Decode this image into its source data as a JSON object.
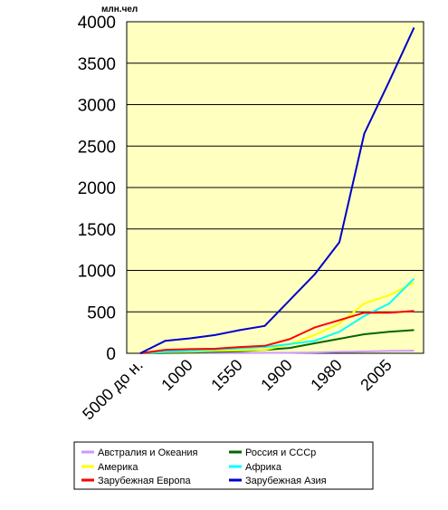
{
  "chart_data": {
    "type": "line",
    "ylabel": "млн.чел",
    "ylim": [
      0,
      4000
    ],
    "yticks": [
      0,
      500,
      1000,
      1500,
      2000,
      2500,
      3000,
      3500,
      4000
    ],
    "categories": [
      "5000 до н.",
      "",
      "1000",
      "",
      "1550",
      "",
      "1900",
      "",
      "1980",
      "",
      "2005",
      ""
    ],
    "grid": "horizontal",
    "legend_position": "bottom",
    "series": [
      {
        "name": "Австралия и Океания",
        "color": "#cc99ff",
        "values": [
          0,
          1,
          2,
          2,
          3,
          5,
          6,
          10,
          18,
          22,
          28,
          32
        ]
      },
      {
        "name": "Россия и СССр",
        "color": "#006600",
        "values": [
          0,
          5,
          10,
          17,
          25,
          40,
          65,
          120,
          175,
          230,
          260,
          280
        ]
      },
      {
        "name": "Америка",
        "color": "#ffff00",
        "values": [
          0,
          15,
          20,
          30,
          35,
          40,
          110,
          220,
          360,
          600,
          700,
          850
        ]
      },
      {
        "name": "Африка",
        "color": "#00ffff",
        "values": [
          0,
          20,
          30,
          45,
          60,
          75,
          110,
          150,
          260,
          450,
          600,
          900
        ]
      },
      {
        "name": "Зарубежная Европа",
        "color": "#ff0000",
        "values": [
          0,
          40,
          50,
          55,
          75,
          90,
          170,
          310,
          400,
          490,
          490,
          510
        ]
      },
      {
        "name": "Зарубежная Азия",
        "color": "#0000cc",
        "values": [
          0,
          150,
          180,
          220,
          280,
          330,
          640,
          950,
          1340,
          2650,
          3280,
          3930
        ]
      }
    ]
  },
  "legend": {
    "items": [
      {
        "label": "Австралия и Океания",
        "color": "#cc99ff"
      },
      {
        "label": "Россия и СССр",
        "color": "#006600"
      },
      {
        "label": "Америка",
        "color": "#ffff00"
      },
      {
        "label": "Африка",
        "color": "#00ffff"
      },
      {
        "label": "Зарубежная Европа",
        "color": "#ff0000"
      },
      {
        "label": "Зарубежная Азия",
        "color": "#0000cc"
      }
    ]
  },
  "colors": {
    "plot_background": "#ffffc0",
    "grid": "#000000"
  }
}
